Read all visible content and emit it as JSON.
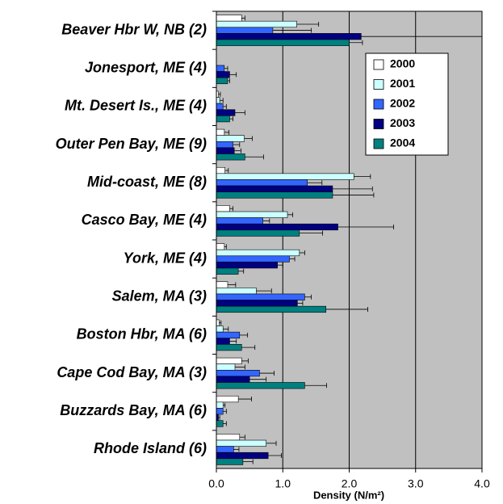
{
  "chart_data": {
    "type": "bar",
    "orientation": "horizontal",
    "xlabel": "Density (N/m²)",
    "categories": [
      "Beaver Hbr W, NB (2)",
      "Jonesport, ME (4)",
      "Mt. Desert Is., ME (4)",
      "Outer Pen Bay, ME (9)",
      "Mid-coast, ME (8)",
      "Casco Bay, ME (4)",
      "York, ME (4)",
      "Salem, MA (3)",
      "Boston Hbr, MA (6)",
      "Cape Cod Bay, MA (3)",
      "Buzzards Bay, MA (6)",
      "Rhode Island (6)"
    ],
    "series": [
      {
        "name": "2000",
        "color": "#ffffff",
        "values": [
          0.38,
          0.0,
          0.03,
          0.12,
          0.13,
          0.2,
          0.12,
          0.17,
          0.04,
          0.38,
          0.33,
          0.35
        ],
        "errors": [
          0.05,
          0.0,
          0.03,
          0.07,
          0.05,
          0.05,
          0.03,
          0.12,
          0.03,
          0.1,
          0.2,
          0.08
        ]
      },
      {
        "name": "2001",
        "color": "#ccffff",
        "values": [
          1.21,
          0.0,
          0.05,
          0.42,
          2.07,
          1.07,
          1.25,
          0.6,
          0.1,
          0.28,
          0.1,
          0.75
        ],
        "errors": [
          0.33,
          0.0,
          0.05,
          0.12,
          0.25,
          0.08,
          0.08,
          0.23,
          0.08,
          0.15,
          0.03,
          0.15
        ]
      },
      {
        "name": "2002",
        "color": "#3366ff",
        "values": [
          0.85,
          0.12,
          0.1,
          0.25,
          1.37,
          0.7,
          1.1,
          1.33,
          0.35,
          0.65,
          0.1,
          0.26
        ],
        "errors": [
          0.58,
          0.05,
          0.05,
          0.1,
          0.22,
          0.1,
          0.08,
          0.1,
          0.12,
          0.22,
          0.05,
          0.08
        ]
      },
      {
        "name": "2003",
        "color": "#000080",
        "values": [
          2.18,
          0.2,
          0.28,
          0.27,
          1.75,
          1.83,
          0.92,
          1.22,
          0.2,
          0.5,
          0.03,
          0.78
        ],
        "errors": [
          1.85,
          0.1,
          0.15,
          0.1,
          0.6,
          0.84,
          0.08,
          0.08,
          0.1,
          0.25,
          0.02,
          0.2
        ]
      },
      {
        "name": "2004",
        "color": "#008080",
        "values": [
          2.0,
          0.17,
          0.2,
          0.43,
          1.75,
          1.25,
          0.33,
          1.65,
          0.38,
          1.33,
          0.1,
          0.4
        ],
        "errors": [
          0.2,
          0.03,
          0.05,
          0.28,
          0.62,
          0.35,
          0.08,
          0.63,
          0.2,
          0.33,
          0.05,
          0.15
        ]
      }
    ],
    "xlim": [
      0,
      4
    ],
    "xticks": [
      {
        "value": 0,
        "label": "0.0"
      },
      {
        "value": 1,
        "label": "1.0"
      },
      {
        "value": 2,
        "label": "2.0"
      },
      {
        "value": 3,
        "label": "3.0"
      },
      {
        "value": 4,
        "label": "4.0"
      }
    ],
    "grid": true,
    "background": "#c0c0c0",
    "legend": "upper right"
  }
}
